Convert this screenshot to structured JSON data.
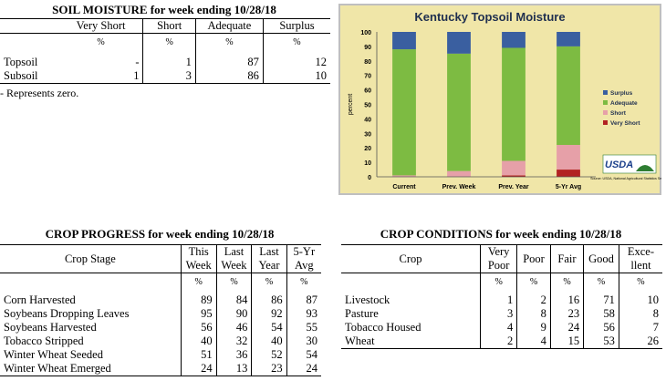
{
  "soil_moisture": {
    "title": "SOIL MOISTURE for week ending 10/28/18",
    "columns": [
      "Very Short",
      "Short",
      "Adequate",
      "Surplus"
    ],
    "unit": "%",
    "rows": [
      {
        "label": "Topsoil",
        "values": [
          "-",
          "1",
          "87",
          "12"
        ]
      },
      {
        "label": "Subsoil",
        "values": [
          "1",
          "3",
          "86",
          "10"
        ]
      }
    ],
    "note": "- Represents zero."
  },
  "chart_data": {
    "type": "bar",
    "title": "Kentucky Topsoil Moisture",
    "ylabel": "percent",
    "categories": [
      "Current",
      "Prev. Week",
      "Prev. Year",
      "5-Yr Avg"
    ],
    "ylim": [
      0,
      100
    ],
    "yticks": [
      "0",
      "10",
      "20",
      "30",
      "40",
      "50",
      "60",
      "70",
      "80",
      "90",
      "100"
    ],
    "stacked": true,
    "series": [
      {
        "name": "Very Short",
        "color": "#b22222",
        "values": [
          0,
          0,
          1,
          5
        ]
      },
      {
        "name": "Short",
        "color": "#e6a0a8",
        "values": [
          1,
          4,
          10,
          17
        ]
      },
      {
        "name": "Adequate",
        "color": "#7dbb42",
        "values": [
          87,
          81,
          78,
          68
        ]
      },
      {
        "name": "Surplus",
        "color": "#3a5fa0",
        "values": [
          12,
          15,
          11,
          10
        ]
      }
    ],
    "legend_order": [
      "Surplus",
      "Adequate",
      "Short",
      "Very Short"
    ],
    "legend_position": "right",
    "grid": false,
    "background": "#f0e6a8",
    "logo": {
      "text": "USDA",
      "caption": "Source: USDA, National Agricultural Statistics Service"
    }
  },
  "crop_progress": {
    "title": "CROP PROGRESS for week ending 10/28/18",
    "stage_header": "Crop Stage",
    "columns": [
      {
        "l1": "This",
        "l2": "Week"
      },
      {
        "l1": "Last",
        "l2": "Week"
      },
      {
        "l1": "Last",
        "l2": "Year"
      },
      {
        "l1": "5-Yr",
        "l2": "Avg"
      }
    ],
    "unit": "%",
    "rows": [
      {
        "label": "Corn Harvested",
        "values": [
          "89",
          "84",
          "86",
          "87"
        ]
      },
      {
        "label": "Soybeans Dropping Leaves",
        "values": [
          "95",
          "90",
          "92",
          "93"
        ]
      },
      {
        "label": "Soybeans Harvested",
        "values": [
          "56",
          "46",
          "54",
          "55"
        ]
      },
      {
        "label": "Tobacco Stripped",
        "values": [
          "40",
          "32",
          "40",
          "30"
        ]
      },
      {
        "label": "Winter Wheat Seeded",
        "values": [
          "51",
          "36",
          "52",
          "54"
        ]
      },
      {
        "label": "Winter Wheat Emerged",
        "values": [
          "24",
          "13",
          "23",
          "24"
        ]
      }
    ]
  },
  "crop_conditions": {
    "title": "CROP CONDITIONS for week ending 10/28/18",
    "crop_header": "Crop",
    "columns": [
      {
        "l1": "Very",
        "l2": "Poor"
      },
      {
        "l1": "Poor",
        "l2": ""
      },
      {
        "l1": "Fair",
        "l2": ""
      },
      {
        "l1": "Good",
        "l2": ""
      },
      {
        "l1": "Exce-",
        "l2": "llent"
      }
    ],
    "unit": "%",
    "rows": [
      {
        "label": "Livestock",
        "values": [
          "1",
          "2",
          "16",
          "71",
          "10"
        ]
      },
      {
        "label": "Pasture",
        "values": [
          "3",
          "8",
          "23",
          "58",
          "8"
        ]
      },
      {
        "label": "Tobacco Housed",
        "values": [
          "4",
          "9",
          "24",
          "56",
          "7"
        ]
      },
      {
        "label": "Wheat",
        "values": [
          "2",
          "4",
          "15",
          "53",
          "26"
        ]
      }
    ]
  }
}
